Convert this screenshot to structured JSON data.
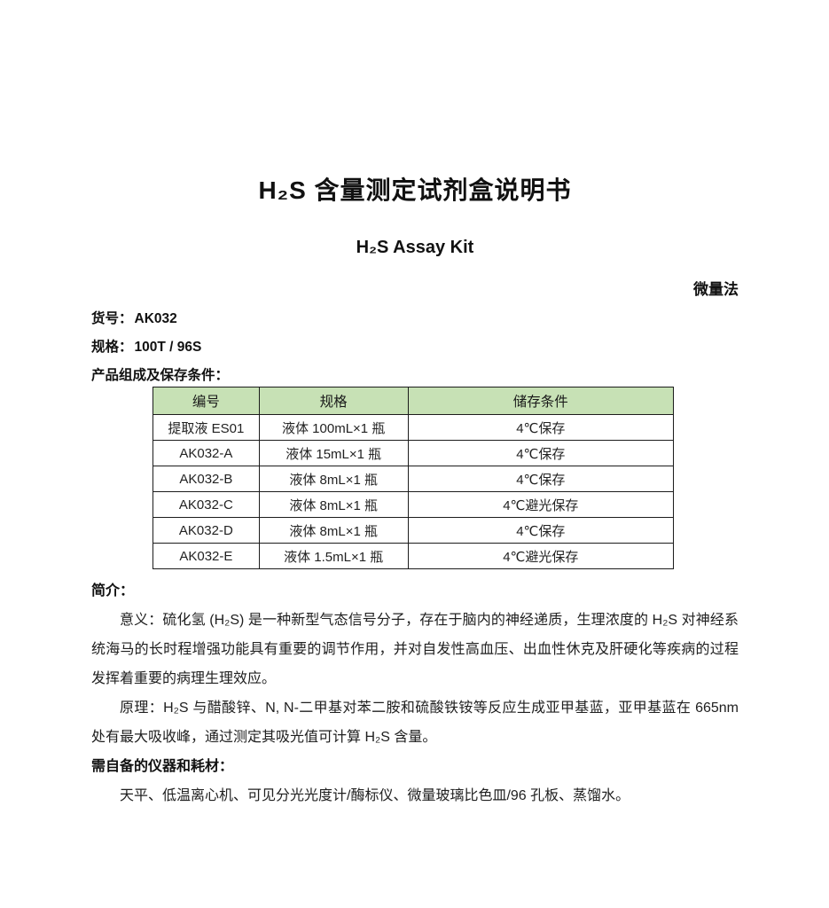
{
  "header": {
    "title_zh": "H₂S 含量测定试剂盒说明书",
    "title_en": "H₂S Assay Kit",
    "method": "微量法"
  },
  "product": {
    "catalog_label": "货号：",
    "catalog_value": "AK032",
    "spec_label": "规格：",
    "spec_value": "100T / 96S"
  },
  "components_table": {
    "heading": "产品组成及保存条件：",
    "header_bg": "#c7e1b5",
    "border_color": "#1c1c1c",
    "columns": [
      "编号",
      "规格",
      "储存条件"
    ],
    "rows": [
      [
        "提取液 ES01",
        "液体 100mL×1 瓶",
        "4℃保存"
      ],
      [
        "AK032-A",
        "液体 15mL×1 瓶",
        "4℃保存"
      ],
      [
        "AK032-B",
        "液体 8mL×1 瓶",
        "4℃保存"
      ],
      [
        "AK032-C",
        "液体 8mL×1 瓶",
        "4℃避光保存"
      ],
      [
        "AK032-D",
        "液体 8mL×1 瓶",
        "4℃保存"
      ],
      [
        "AK032-E",
        "液体 1.5mL×1 瓶",
        "4℃避光保存"
      ]
    ]
  },
  "intro": {
    "heading": "简介：",
    "paragraphs": [
      "意义：硫化氢 (H₂S) 是一种新型气态信号分子，存在于脑内的神经递质，生理浓度的 H₂S 对神经系统海马的长时程增强功能具有重要的调节作用，并对自发性高血压、出血性休克及肝硬化等疾病的过程发挥着重要的病理生理效应。",
      "原理：H₂S 与醋酸锌、N, N-二甲基对苯二胺和硫酸铁铵等反应生成亚甲基蓝，亚甲基蓝在 665nm 处有最大吸收峰，通过测定其吸光值可计算 H₂S 含量。"
    ]
  },
  "equipment": {
    "heading": "需自备的仪器和耗材：",
    "text": "天平、低温离心机、可见分光光度计/酶标仪、微量玻璃比色皿/96 孔板、蒸馏水。"
  }
}
